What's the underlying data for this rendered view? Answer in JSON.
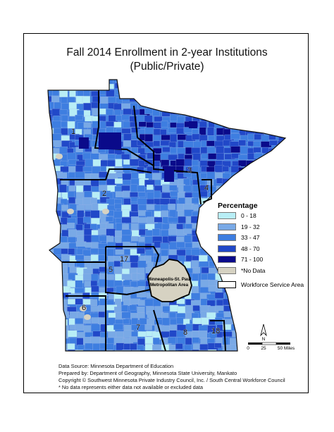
{
  "title_line1": "Fall 2014 Enrollment in 2-year Institutions",
  "title_line2": "(Public/Private)",
  "legend": {
    "title": "Percentage",
    "classes": [
      {
        "label": "0 - 18",
        "color": "#b8eef6"
      },
      {
        "label": "19 - 32",
        "color": "#79a9e6"
      },
      {
        "label": "33 - 47",
        "color": "#3e7ee0"
      },
      {
        "label": "48 - 70",
        "color": "#2148c8"
      },
      {
        "label": "71 - 100",
        "color": "#0a0a8a"
      },
      {
        "label": "*No Data",
        "color": "#d6d2c2"
      }
    ],
    "wsa_label": "Workforce Service Area"
  },
  "region_labels": [
    "1",
    "2",
    "3",
    "4",
    "5",
    "6",
    "7",
    "8",
    "17",
    "18"
  ],
  "metro_label_line1": "Minneapolis-St. Paul",
  "metro_label_line2": "Metropolitan Area",
  "north_arrow": "N",
  "scale": {
    "ticks": [
      "0",
      "25",
      "50 Miles"
    ]
  },
  "credits": [
    "Data Source: Minnesota Department of Education",
    "Prepared by: Department of Geography, Minnesota State University, Mankato",
    "Copyright © Southwest Minnesota Private Industry Council, Inc. / South Central Workforce Council",
    "* No data represents either data not available or excluded data"
  ]
}
